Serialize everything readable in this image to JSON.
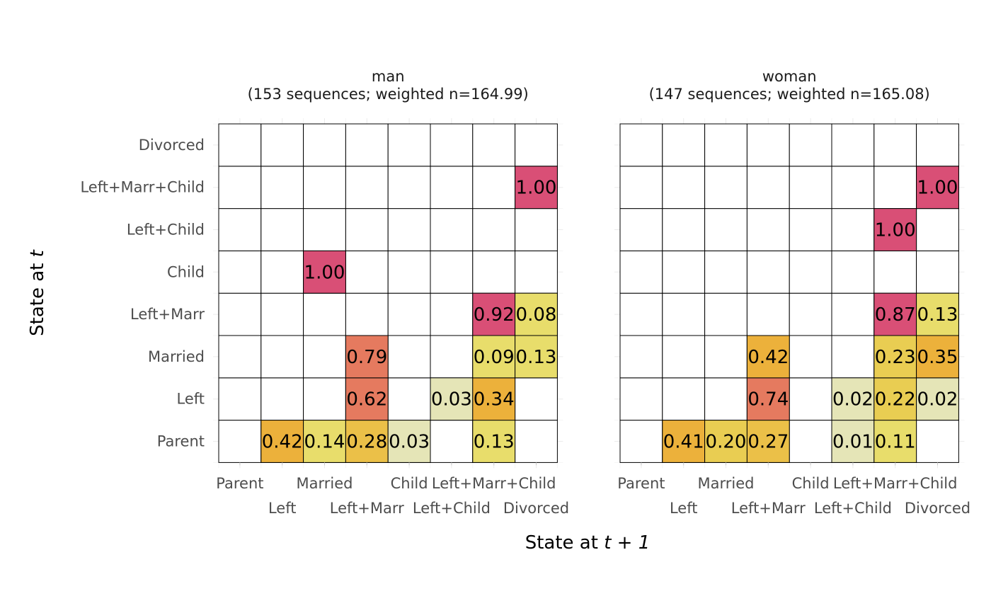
{
  "chart_data": {
    "type": "heatmap",
    "xlabel_prefix": "State at ",
    "xlabel_italic": "t + 1",
    "ylabel_prefix": "State at ",
    "ylabel_italic": "t",
    "x_categories": [
      "Parent",
      "Left",
      "Married",
      "Left+Marr",
      "Child",
      "Left+Child",
      "Left+Marr+Child",
      "Divorced"
    ],
    "y_categories": [
      "Parent",
      "Left",
      "Married",
      "Left+Marr",
      "Child",
      "Left+Child",
      "Left+Marr+Child",
      "Divorced"
    ],
    "colors": {
      "low": "#e5e5b7",
      "mid_low": "#e8dd6b",
      "mid": "#ecb13b",
      "high": "#e57a5f",
      "top": "#d94f76"
    },
    "panels": [
      {
        "title_line1": "man",
        "title_line2": "(153 sequences; weighted n=164.99)",
        "cells": [
          {
            "from": "Parent",
            "to": "Left",
            "value": "0.42"
          },
          {
            "from": "Parent",
            "to": "Married",
            "value": "0.14"
          },
          {
            "from": "Parent",
            "to": "Left+Marr",
            "value": "0.28"
          },
          {
            "from": "Parent",
            "to": "Child",
            "value": "0.03"
          },
          {
            "from": "Parent",
            "to": "Left+Marr+Child",
            "value": "0.13"
          },
          {
            "from": "Left",
            "to": "Left+Marr",
            "value": "0.62"
          },
          {
            "from": "Left",
            "to": "Left+Child",
            "value": "0.03"
          },
          {
            "from": "Left",
            "to": "Left+Marr+Child",
            "value": "0.34"
          },
          {
            "from": "Married",
            "to": "Left+Marr",
            "value": "0.79"
          },
          {
            "from": "Married",
            "to": "Left+Marr+Child",
            "value": "0.09"
          },
          {
            "from": "Married",
            "to": "Divorced",
            "value": "0.13"
          },
          {
            "from": "Left+Marr",
            "to": "Left+Marr+Child",
            "value": "0.92"
          },
          {
            "from": "Left+Marr",
            "to": "Divorced",
            "value": "0.08"
          },
          {
            "from": "Child",
            "to": "Married",
            "value": "1.00"
          },
          {
            "from": "Left+Marr+Child",
            "to": "Divorced",
            "value": "1.00"
          }
        ]
      },
      {
        "title_line1": "woman",
        "title_line2": "(147 sequences; weighted n=165.08)",
        "cells": [
          {
            "from": "Parent",
            "to": "Left",
            "value": "0.41"
          },
          {
            "from": "Parent",
            "to": "Married",
            "value": "0.20"
          },
          {
            "from": "Parent",
            "to": "Left+Marr",
            "value": "0.27"
          },
          {
            "from": "Parent",
            "to": "Left+Child",
            "value": "0.01"
          },
          {
            "from": "Parent",
            "to": "Left+Marr+Child",
            "value": "0.11"
          },
          {
            "from": "Left",
            "to": "Left+Marr",
            "value": "0.74"
          },
          {
            "from": "Left",
            "to": "Left+Child",
            "value": "0.02"
          },
          {
            "from": "Left",
            "to": "Left+Marr+Child",
            "value": "0.22"
          },
          {
            "from": "Left",
            "to": "Divorced",
            "value": "0.02"
          },
          {
            "from": "Married",
            "to": "Left+Marr",
            "value": "0.42"
          },
          {
            "from": "Married",
            "to": "Left+Marr+Child",
            "value": "0.23"
          },
          {
            "from": "Married",
            "to": "Divorced",
            "value": "0.35"
          },
          {
            "from": "Left+Marr",
            "to": "Left+Marr+Child",
            "value": "0.87"
          },
          {
            "from": "Left+Marr",
            "to": "Divorced",
            "value": "0.13"
          },
          {
            "from": "Left+Child",
            "to": "Left+Marr+Child",
            "value": "1.00"
          },
          {
            "from": "Left+Marr+Child",
            "to": "Divorced",
            "value": "1.00"
          }
        ]
      }
    ]
  }
}
